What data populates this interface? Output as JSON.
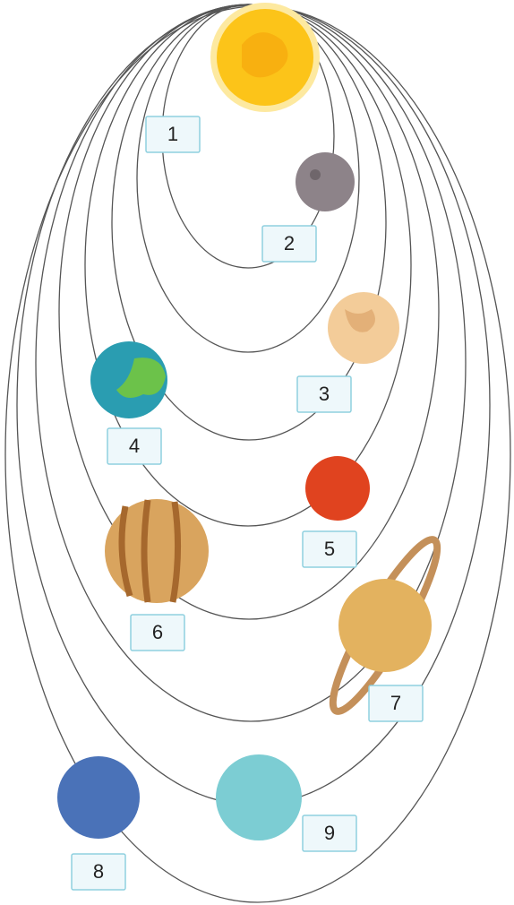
{
  "labels": [
    "1",
    "2",
    "3",
    "4",
    "5",
    "6",
    "7",
    "8",
    "9"
  ]
}
